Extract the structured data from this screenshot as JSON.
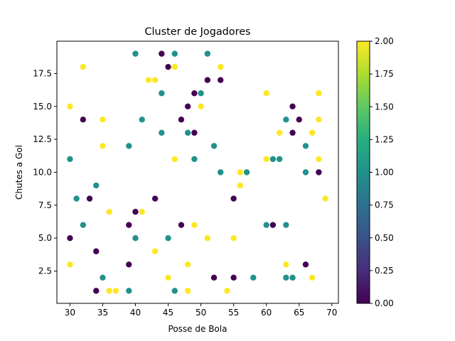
{
  "chart_data": {
    "type": "scatter",
    "title": "Cluster de Jogadores",
    "xlabel": "Posse de Bola",
    "ylabel": "Chutes a Gol",
    "xlim": [
      28.0,
      71.0
    ],
    "ylim": [
      0.05,
      19.95
    ],
    "xticks": [
      30,
      35,
      40,
      45,
      50,
      55,
      60,
      65,
      70
    ],
    "yticks": [
      2.5,
      5.0,
      7.5,
      10.0,
      12.5,
      15.0,
      17.5
    ],
    "xtick_labels": [
      "30",
      "35",
      "40",
      "45",
      "50",
      "55",
      "60",
      "65",
      "70"
    ],
    "ytick_labels": [
      "2.5",
      "5.0",
      "7.5",
      "10.0",
      "12.5",
      "15.0",
      "17.5"
    ],
    "grid": false,
    "colormap": "viridis",
    "colorbar": {
      "range": [
        0,
        2
      ],
      "ticks": [
        0.0,
        0.25,
        0.5,
        0.75,
        1.0,
        1.25,
        1.5,
        1.75,
        2.0
      ],
      "tick_labels": [
        "0.00",
        "0.25",
        "0.50",
        "0.75",
        "1.00",
        "1.25",
        "1.50",
        "1.75",
        "2.00"
      ]
    },
    "colors": {
      "0": "#440154",
      "1": "#21918c",
      "2": "#fde725"
    },
    "points": [
      {
        "x": 40,
        "y": 19,
        "c": 1
      },
      {
        "x": 44,
        "y": 19,
        "c": 0
      },
      {
        "x": 46,
        "y": 19,
        "c": 1
      },
      {
        "x": 51,
        "y": 19,
        "c": 1
      },
      {
        "x": 32,
        "y": 18,
        "c": 2
      },
      {
        "x": 45,
        "y": 18,
        "c": 0
      },
      {
        "x": 46,
        "y": 18,
        "c": 2
      },
      {
        "x": 53,
        "y": 18,
        "c": 2
      },
      {
        "x": 42,
        "y": 17,
        "c": 2
      },
      {
        "x": 43,
        "y": 17,
        "c": 2
      },
      {
        "x": 51,
        "y": 17,
        "c": 0
      },
      {
        "x": 53,
        "y": 17,
        "c": 0
      },
      {
        "x": 44,
        "y": 16,
        "c": 1
      },
      {
        "x": 49,
        "y": 16,
        "c": 0
      },
      {
        "x": 50,
        "y": 16,
        "c": 1
      },
      {
        "x": 60,
        "y": 16,
        "c": 2
      },
      {
        "x": 68,
        "y": 16,
        "c": 2
      },
      {
        "x": 30,
        "y": 15,
        "c": 2
      },
      {
        "x": 48,
        "y": 15,
        "c": 0
      },
      {
        "x": 50,
        "y": 15,
        "c": 2
      },
      {
        "x": 64,
        "y": 15,
        "c": 0
      },
      {
        "x": 32,
        "y": 14,
        "c": 0
      },
      {
        "x": 35,
        "y": 14,
        "c": 2
      },
      {
        "x": 41,
        "y": 14,
        "c": 1
      },
      {
        "x": 47,
        "y": 14,
        "c": 0
      },
      {
        "x": 63,
        "y": 14,
        "c": 1
      },
      {
        "x": 65,
        "y": 14,
        "c": 0
      },
      {
        "x": 68,
        "y": 14,
        "c": 2
      },
      {
        "x": 44,
        "y": 13,
        "c": 1
      },
      {
        "x": 48,
        "y": 13,
        "c": 1
      },
      {
        "x": 49,
        "y": 13,
        "c": 0
      },
      {
        "x": 62,
        "y": 13,
        "c": 2
      },
      {
        "x": 64,
        "y": 13,
        "c": 0
      },
      {
        "x": 67,
        "y": 13,
        "c": 2
      },
      {
        "x": 35,
        "y": 12,
        "c": 2
      },
      {
        "x": 39,
        "y": 12,
        "c": 1
      },
      {
        "x": 52,
        "y": 12,
        "c": 1
      },
      {
        "x": 66,
        "y": 12,
        "c": 1
      },
      {
        "x": 30,
        "y": 11,
        "c": 1
      },
      {
        "x": 46,
        "y": 11,
        "c": 2
      },
      {
        "x": 49,
        "y": 11,
        "c": 1
      },
      {
        "x": 60,
        "y": 11,
        "c": 2
      },
      {
        "x": 61,
        "y": 11,
        "c": 1
      },
      {
        "x": 62,
        "y": 11,
        "c": 1
      },
      {
        "x": 68,
        "y": 11,
        "c": 2
      },
      {
        "x": 53,
        "y": 10,
        "c": 1
      },
      {
        "x": 56,
        "y": 10,
        "c": 2
      },
      {
        "x": 57,
        "y": 10,
        "c": 1
      },
      {
        "x": 66,
        "y": 10,
        "c": 1
      },
      {
        "x": 68,
        "y": 10,
        "c": 0
      },
      {
        "x": 34,
        "y": 9,
        "c": 1
      },
      {
        "x": 56,
        "y": 9,
        "c": 2
      },
      {
        "x": 31,
        "y": 8,
        "c": 1
      },
      {
        "x": 33,
        "y": 8,
        "c": 0
      },
      {
        "x": 43,
        "y": 8,
        "c": 0
      },
      {
        "x": 55,
        "y": 8,
        "c": 0
      },
      {
        "x": 69,
        "y": 8,
        "c": 2
      },
      {
        "x": 36,
        "y": 7,
        "c": 2
      },
      {
        "x": 40,
        "y": 7,
        "c": 0
      },
      {
        "x": 41,
        "y": 7,
        "c": 2
      },
      {
        "x": 32,
        "y": 6,
        "c": 1
      },
      {
        "x": 39,
        "y": 6,
        "c": 0
      },
      {
        "x": 47,
        "y": 6,
        "c": 0
      },
      {
        "x": 49,
        "y": 6,
        "c": 2
      },
      {
        "x": 60,
        "y": 6,
        "c": 1
      },
      {
        "x": 61,
        "y": 6,
        "c": 0
      },
      {
        "x": 63,
        "y": 6,
        "c": 1
      },
      {
        "x": 30,
        "y": 5,
        "c": 0
      },
      {
        "x": 40,
        "y": 5,
        "c": 1
      },
      {
        "x": 45,
        "y": 5,
        "c": 1
      },
      {
        "x": 51,
        "y": 5,
        "c": 2
      },
      {
        "x": 55,
        "y": 5,
        "c": 2
      },
      {
        "x": 34,
        "y": 4,
        "c": 0
      },
      {
        "x": 43,
        "y": 4,
        "c": 2
      },
      {
        "x": 30,
        "y": 3,
        "c": 2
      },
      {
        "x": 39,
        "y": 3,
        "c": 0
      },
      {
        "x": 48,
        "y": 3,
        "c": 2
      },
      {
        "x": 63,
        "y": 3,
        "c": 2
      },
      {
        "x": 66,
        "y": 3,
        "c": 0
      },
      {
        "x": 35,
        "y": 2,
        "c": 1
      },
      {
        "x": 45,
        "y": 2,
        "c": 2
      },
      {
        "x": 52,
        "y": 2,
        "c": 0
      },
      {
        "x": 55,
        "y": 2,
        "c": 0
      },
      {
        "x": 58,
        "y": 2,
        "c": 1
      },
      {
        "x": 63,
        "y": 2,
        "c": 1
      },
      {
        "x": 64,
        "y": 2,
        "c": 1
      },
      {
        "x": 67,
        "y": 2,
        "c": 2
      },
      {
        "x": 34,
        "y": 1,
        "c": 0
      },
      {
        "x": 36,
        "y": 1,
        "c": 2
      },
      {
        "x": 37,
        "y": 1,
        "c": 2
      },
      {
        "x": 39,
        "y": 1,
        "c": 1
      },
      {
        "x": 46,
        "y": 1,
        "c": 1
      },
      {
        "x": 48,
        "y": 1,
        "c": 2
      },
      {
        "x": 54,
        "y": 1,
        "c": 2
      }
    ]
  }
}
